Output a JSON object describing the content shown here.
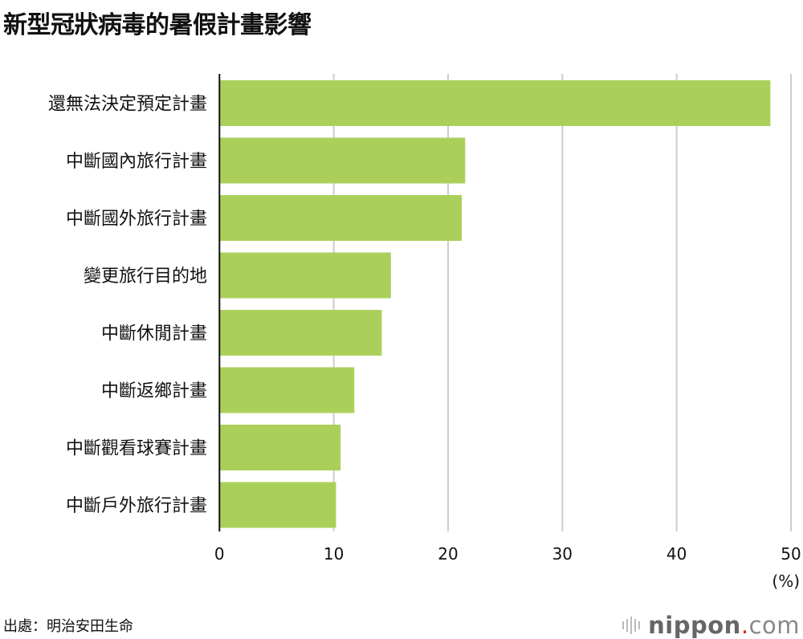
{
  "chart_data": {
    "type": "bar",
    "orientation": "horizontal",
    "title": "新型冠狀病毒的暑假計畫影響",
    "categories": [
      "還無法決定預定計畫",
      "中斷國內旅行計畫",
      "中斷國外旅行計畫",
      "變更旅行目的地",
      "中斷休閒計畫",
      "中斷返鄉計畫",
      "中斷觀看球賽計畫",
      "中斷戶外旅行計畫"
    ],
    "values": [
      48.2,
      21.5,
      21.2,
      15.0,
      14.2,
      11.8,
      10.6,
      10.2
    ],
    "xlabel": "(%)",
    "ylabel": "",
    "xlim": [
      0,
      50
    ],
    "xticks": [
      "0",
      "10",
      "20",
      "30",
      "40",
      "50"
    ],
    "grid": true,
    "bar_color": "#abd05a",
    "grid_color": "#cccccc"
  },
  "source": "出處：明治安田生命",
  "logo": {
    "name": "nippon",
    "dot": ".",
    "suffix": "com"
  }
}
